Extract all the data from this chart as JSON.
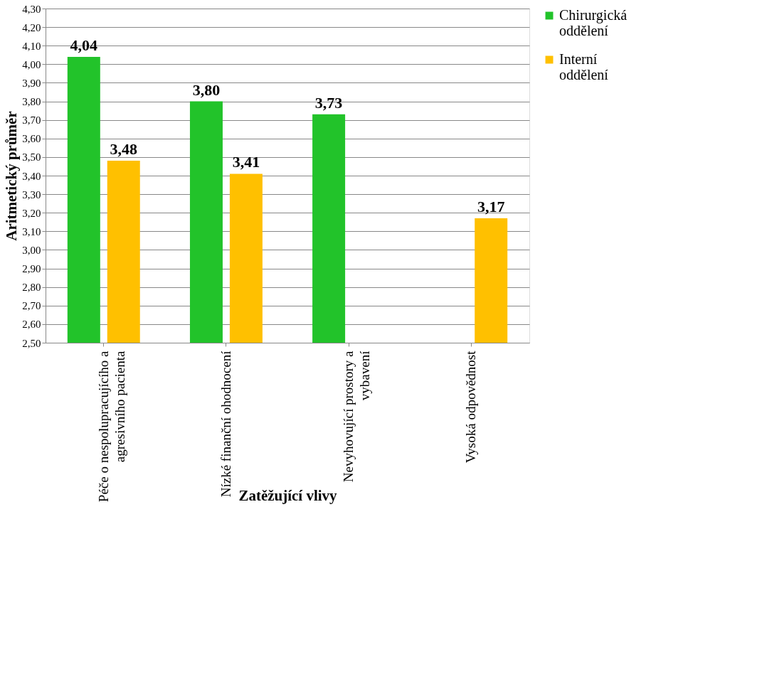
{
  "chart_data": {
    "type": "bar",
    "xlabel": "Zatěžující vlivy",
    "ylabel": "Aritmetický průměr",
    "categories": [
      "Péče o nespolupracujícího a\nagresivního pacienta",
      "Nízké finanční ohodnocení",
      "Nevyhovující prostory a\nvybavení",
      "Vysoká odpovědnost"
    ],
    "series": [
      {
        "name": "Chirurgická\noddělení",
        "color": "#22c32a",
        "values": [
          4.04,
          3.8,
          3.73,
          null
        ],
        "value_labels": [
          "4,04",
          "3,80",
          "3,73",
          null
        ]
      },
      {
        "name": "Interní\noddělení",
        "color": "#ffc000",
        "values": [
          3.48,
          3.41,
          null,
          3.17
        ],
        "value_labels": [
          "3,48",
          "3,41",
          null,
          "3,17"
        ]
      }
    ],
    "ylim": [
      2.5,
      4.3
    ],
    "yticks": [
      {
        "value": 2.5,
        "label": "2,50"
      },
      {
        "value": 2.6,
        "label": "2,60"
      },
      {
        "value": 2.7,
        "label": "2,70"
      },
      {
        "value": 2.8,
        "label": "2,80"
      },
      {
        "value": 2.9,
        "label": "2,90"
      },
      {
        "value": 3.0,
        "label": "3,00"
      },
      {
        "value": 3.1,
        "label": "3,10"
      },
      {
        "value": 3.2,
        "label": "3,20"
      },
      {
        "value": 3.3,
        "label": "3,30"
      },
      {
        "value": 3.4,
        "label": "3,40"
      },
      {
        "value": 3.5,
        "label": "3,50"
      },
      {
        "value": 3.6,
        "label": "3,60"
      },
      {
        "value": 3.7,
        "label": "3,70"
      },
      {
        "value": 3.8,
        "label": "3,80"
      },
      {
        "value": 3.9,
        "label": "3,90"
      },
      {
        "value": 4.0,
        "label": "4,00"
      },
      {
        "value": 4.1,
        "label": "4,10"
      },
      {
        "value": 4.2,
        "label": "4,20"
      },
      {
        "value": 4.3,
        "label": "4,30"
      }
    ],
    "grid": "y",
    "legend": "right"
  }
}
